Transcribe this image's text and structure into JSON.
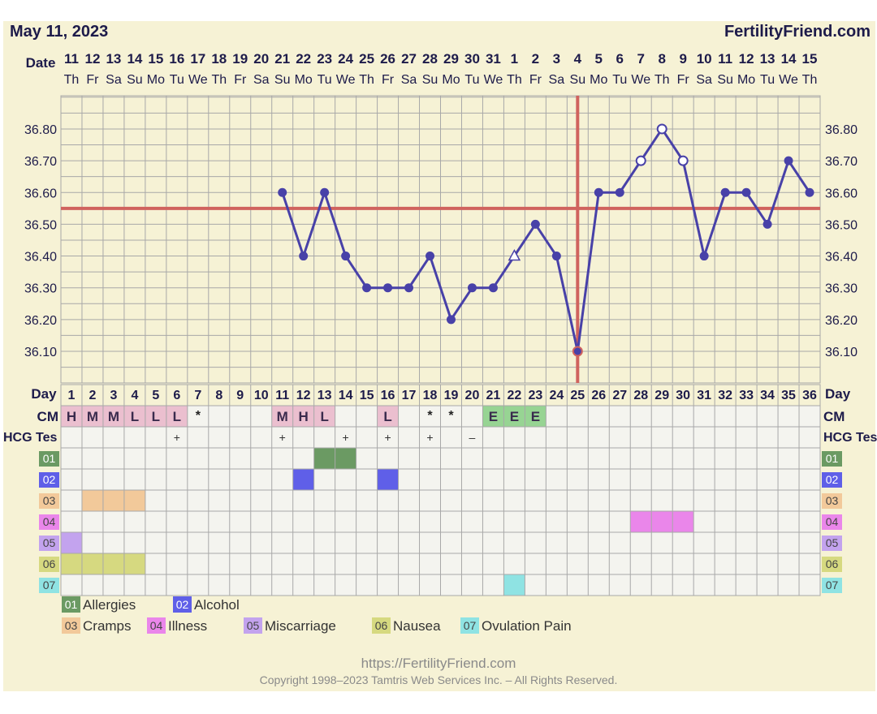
{
  "header": {
    "chart_date": "May 11, 2023",
    "site_name": "FertilityFriend.com"
  },
  "row_labels": {
    "date": "Date",
    "day": "Day",
    "cm": "CM",
    "hcg": "HCG Tes"
  },
  "symptom_codes": [
    "01",
    "02",
    "03",
    "04",
    "05",
    "06",
    "07"
  ],
  "legend": [
    {
      "code": "01",
      "label": "Allergies",
      "color": "#6b9a63"
    },
    {
      "code": "02",
      "label": "Alcohol",
      "color": "#5f5fe8"
    },
    {
      "code": "03",
      "label": "Cramps",
      "color": "#f2c99a"
    },
    {
      "code": "04",
      "label": "Illness",
      "color": "#ea86ea"
    },
    {
      "code": "05",
      "label": "Miscarriage",
      "color": "#c3a3ee"
    },
    {
      "code": "06",
      "label": "Nausea",
      "color": "#d6d980"
    },
    {
      "code": "07",
      "label": "Ovulation Pain",
      "color": "#8fe3e3"
    }
  ],
  "footer": {
    "url": "https://FertilityFriend.com",
    "copyright": "Copyright 1998–2023 Tamtris Web Services Inc. – All Rights Reserved."
  },
  "colors": {
    "line": "#4841a8",
    "coverline": "#d0635e",
    "grid": "#a8a8a8",
    "plot_bg": "#f6f2d5",
    "row_bg": "#f4f4ef",
    "cm_bg": "#ebbfcf",
    "cm_egg_bg": "#97d493",
    "text": "#1d1b4a"
  },
  "chart_data": {
    "type": "line",
    "title": "",
    "dates": [
      "11",
      "12",
      "13",
      "14",
      "15",
      "16",
      "17",
      "18",
      "19",
      "20",
      "21",
      "22",
      "23",
      "24",
      "25",
      "26",
      "27",
      "28",
      "29",
      "30",
      "31",
      "1",
      "2",
      "3",
      "4",
      "5",
      "6",
      "7",
      "8",
      "9",
      "10",
      "11",
      "12",
      "13",
      "14",
      "15"
    ],
    "weekdays": [
      "Th",
      "Fr",
      "Sa",
      "Su",
      "Mo",
      "Tu",
      "We",
      "Th",
      "Fr",
      "Sa",
      "Su",
      "Mo",
      "Tu",
      "We",
      "Th",
      "Fr",
      "Sa",
      "Su",
      "Mo",
      "Tu",
      "We",
      "Th",
      "Fr",
      "Sa",
      "Su",
      "Mo",
      "Tu",
      "We",
      "Th",
      "Fr",
      "Sa",
      "Su",
      "Mo",
      "Tu",
      "We",
      "Th"
    ],
    "cycle_days": [
      1,
      2,
      3,
      4,
      5,
      6,
      7,
      8,
      9,
      10,
      11,
      12,
      13,
      14,
      15,
      16,
      17,
      18,
      19,
      20,
      21,
      22,
      23,
      24,
      25,
      26,
      27,
      28,
      29,
      30,
      31,
      32,
      33,
      34,
      35,
      36
    ],
    "ylim": [
      36.0,
      36.9
    ],
    "y_ticks": [
      "36.10",
      "36.20",
      "36.30",
      "36.40",
      "36.50",
      "36.60",
      "36.70",
      "36.80"
    ],
    "grid": true,
    "series": [
      {
        "values": [
          null,
          null,
          null,
          null,
          null,
          null,
          null,
          null,
          null,
          null,
          36.6,
          36.4,
          36.6,
          36.4,
          36.3,
          36.3,
          36.3,
          36.4,
          36.2,
          36.3,
          36.3,
          36.4,
          36.5,
          36.4,
          36.1,
          36.6,
          36.6,
          36.7,
          36.8,
          36.7,
          36.4,
          36.6,
          36.6,
          36.5,
          36.7,
          36.6
        ],
        "markers": [
          "",
          "",
          "",
          "",
          "",
          "",
          "",
          "",
          "",
          "",
          "filled",
          "filled",
          "filled",
          "filled",
          "filled",
          "filled",
          "filled",
          "filled",
          "filled",
          "filled",
          "filled",
          "triangle-open",
          "filled",
          "filled",
          "open-filled",
          "filled",
          "filled",
          "open",
          "open",
          "open",
          "filled",
          "filled",
          "filled",
          "filled",
          "filled",
          "filled"
        ]
      }
    ],
    "coverline": 36.55,
    "ovulation_day": 25,
    "cm": [
      "H",
      "M",
      "M",
      "L",
      "L",
      "L",
      "*",
      "",
      "",
      "",
      "M",
      "H",
      "L",
      "",
      "",
      "L",
      "",
      "*",
      "*",
      "",
      "E",
      "E",
      "E",
      "",
      "",
      "",
      "",
      "",
      "",
      "",
      "",
      "",
      "",
      "",
      "",
      ""
    ],
    "hcg_tests": [
      "",
      "",
      "",
      "",
      "",
      "+",
      "",
      "",
      "",
      "",
      "+",
      "",
      "",
      "+",
      "",
      "+",
      "",
      "+",
      "",
      "–",
      "",
      "",
      "",
      "",
      "",
      "",
      "",
      "",
      "",
      "",
      "",
      "",
      "",
      "",
      "",
      ""
    ],
    "symptoms": {
      "01": [
        13,
        14
      ],
      "02": [
        12,
        16
      ],
      "03": [
        2,
        3,
        4
      ],
      "04": [
        28,
        29,
        30
      ],
      "05": [
        1
      ],
      "06": [
        1,
        2,
        3,
        4
      ],
      "07": [
        22
      ]
    }
  }
}
